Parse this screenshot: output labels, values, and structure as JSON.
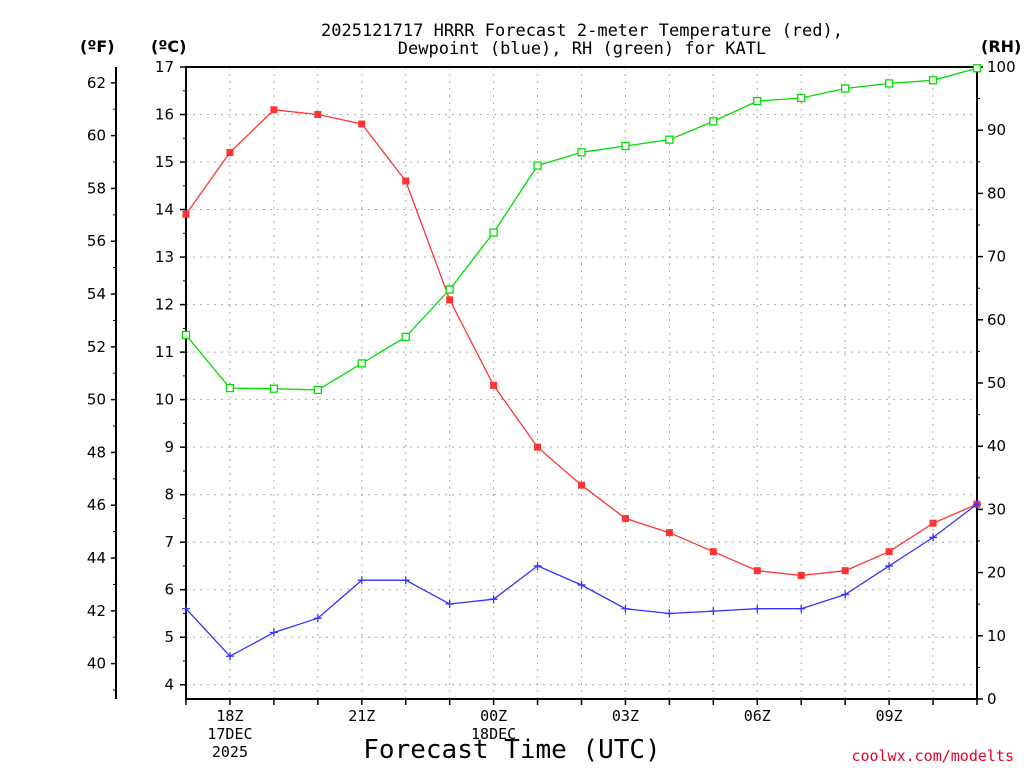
{
  "chart_data": {
    "type": "line",
    "title_line1": "2025121717 HRRR Forecast 2-meter Temperature (red),",
    "title_line2": "Dewpoint (blue), RH (green) for KATL",
    "unit_f": "(ºF)",
    "unit_c": "(ºC)",
    "unit_rh": "(RH)",
    "xlabel": "Forecast Time (UTC)",
    "credit": "coolwx.com/modelts",
    "x": [
      17,
      18,
      19,
      20,
      21,
      22,
      23,
      24,
      25,
      26,
      27,
      28,
      29,
      30,
      31,
      32,
      33,
      34,
      35
    ],
    "x_range": [
      17,
      35
    ],
    "y_c_range": [
      3.7,
      17
    ],
    "y_rh_range": [
      0,
      100
    ],
    "f_ticks": [
      "40",
      "42",
      "44",
      "46",
      "48",
      "50",
      "52",
      "54",
      "56",
      "58",
      "60",
      "62"
    ],
    "c_ticks": [
      "4",
      "5",
      "6",
      "7",
      "8",
      "9",
      "10",
      "11",
      "12",
      "13",
      "14",
      "15",
      "16",
      "17"
    ],
    "rh_ticks": [
      "0",
      "10",
      "20",
      "30",
      "40",
      "50",
      "60",
      "70",
      "80",
      "90",
      "100"
    ],
    "x_ticks": [
      {
        "x": 18,
        "line1": "18Z",
        "line2": "17DEC",
        "line3": "2025"
      },
      {
        "x": 21,
        "line1": "21Z",
        "line2": "",
        "line3": ""
      },
      {
        "x": 24,
        "line1": "00Z",
        "line2": "18DEC",
        "line3": ""
      },
      {
        "x": 27,
        "line1": "03Z",
        "line2": "",
        "line3": ""
      },
      {
        "x": 30,
        "line1": "06Z",
        "line2": "",
        "line3": ""
      },
      {
        "x": 33,
        "line1": "09Z",
        "line2": "",
        "line3": ""
      }
    ],
    "series": [
      {
        "name": "Temperature",
        "unit": "C",
        "color": "#ff3333",
        "marker": "filled-square",
        "values": [
          13.9,
          15.2,
          16.1,
          16.0,
          15.8,
          14.6,
          12.1,
          10.3,
          9.0,
          8.2,
          7.5,
          7.2,
          6.8,
          6.4,
          6.3,
          6.4,
          6.8,
          7.4,
          7.8
        ]
      },
      {
        "name": "Dewpoint",
        "unit": "C",
        "color": "#3333ff",
        "marker": "plus",
        "values": [
          5.6,
          4.6,
          5.1,
          5.4,
          6.2,
          6.2,
          5.7,
          5.8,
          6.5,
          6.1,
          5.6,
          5.5,
          5.55,
          5.6,
          5.6,
          5.9,
          6.5,
          7.1,
          7.8
        ]
      },
      {
        "name": "RH",
        "unit": "%",
        "color": "#00dd00",
        "marker": "open-square",
        "values": [
          57.6,
          49.2,
          49.1,
          48.9,
          53.1,
          57.3,
          64.8,
          73.8,
          84.4,
          86.5,
          87.5,
          88.5,
          91.4,
          94.6,
          95.1,
          96.6,
          97.4,
          97.9,
          99.8
        ]
      }
    ]
  }
}
